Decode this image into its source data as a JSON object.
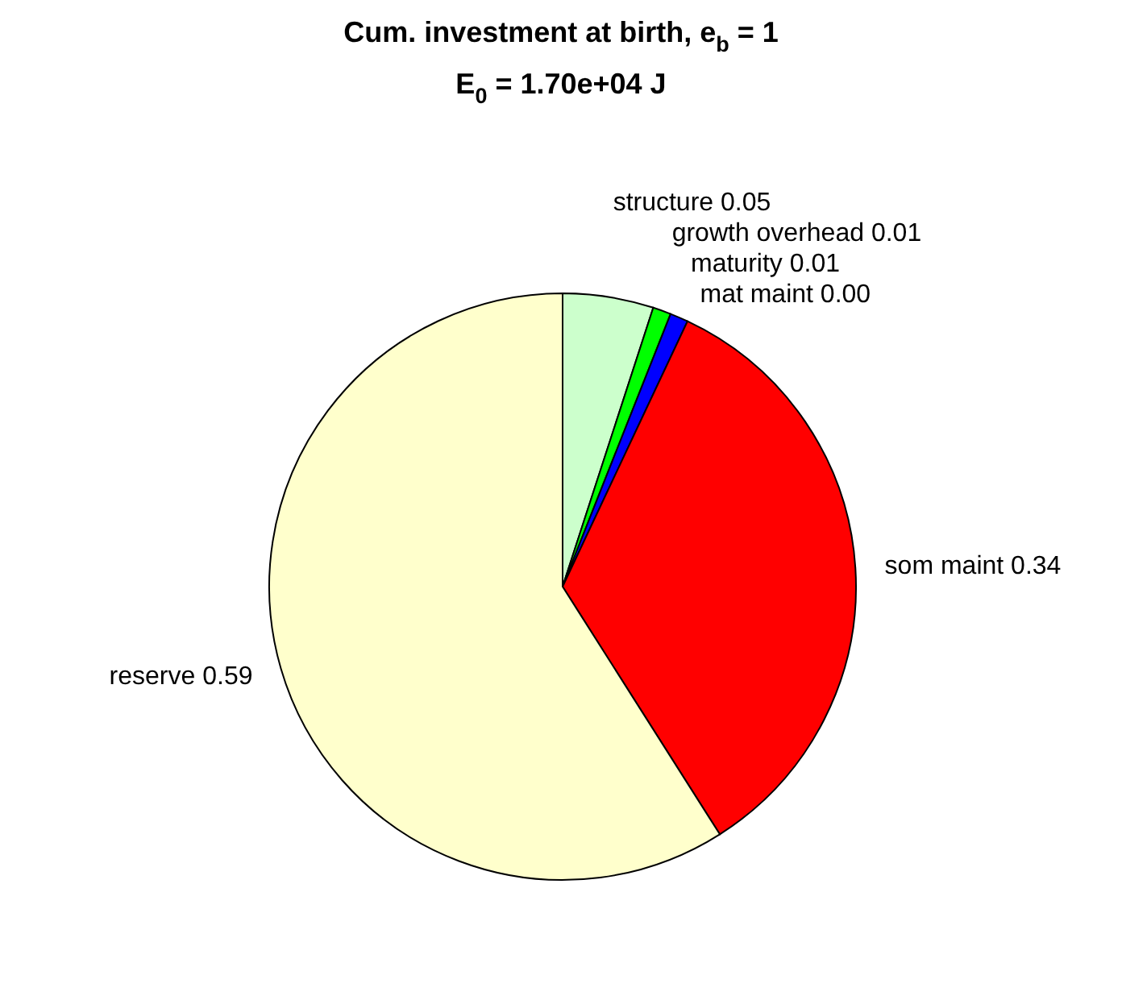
{
  "chart_data": {
    "type": "pie",
    "title": "Cum. investment at birth, e$_{b}$ = 1",
    "subtitle": "E$_{0}$ = 1.70e+04 J",
    "categories": [
      "structure",
      "growth overhead",
      "maturity",
      "mat maint",
      "som maint",
      "reserve"
    ],
    "values": [
      0.05,
      0.01,
      0.01,
      0.0,
      0.34,
      0.59
    ],
    "colors": [
      "#ccffcc",
      "#00ff00",
      "#0000ff",
      "#ff00ff",
      "#ff0000",
      "#ffffcc"
    ],
    "value_labels": [
      "0.05",
      "0.01",
      "0.01",
      "0.00",
      "0.34",
      "0.59"
    ]
  }
}
